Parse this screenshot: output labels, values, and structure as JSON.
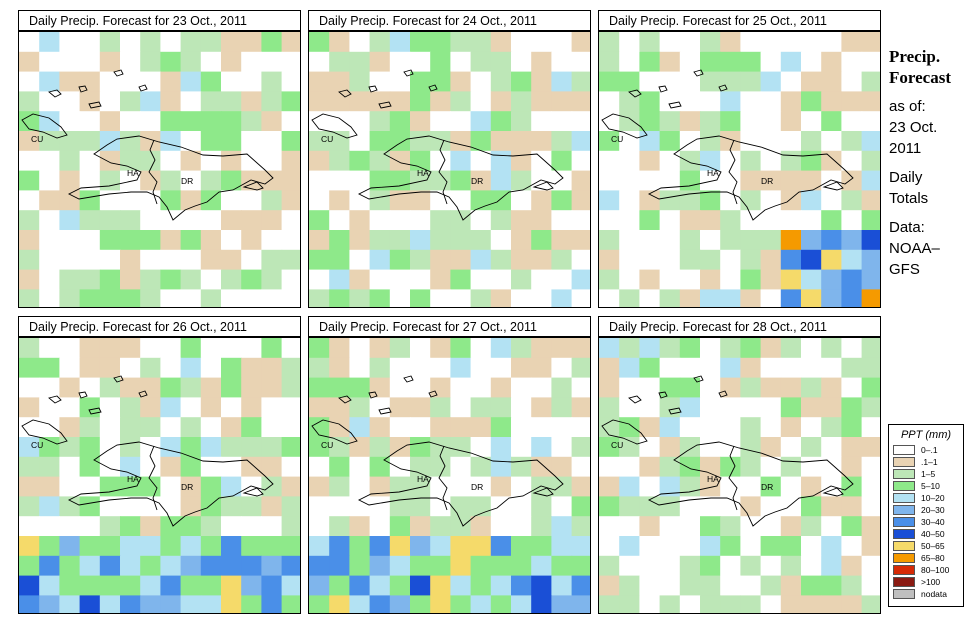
{
  "panels": [
    {
      "title": "Daily Precip. Forecast for  23 Oct., 2011",
      "seed": 11,
      "scenario": "calm"
    },
    {
      "title": "Daily Precip. Forecast for  24 Oct., 2011",
      "seed": 23,
      "scenario": "calm"
    },
    {
      "title": "Daily Precip. Forecast for  25 Oct., 2011",
      "seed": 37,
      "scenario": "storm_se"
    },
    {
      "title": "Daily Precip. Forecast for  26 Oct., 2011",
      "seed": 51,
      "scenario": "storm_s"
    },
    {
      "title": "Daily Precip. Forecast for  27 Oct., 2011",
      "seed": 67,
      "scenario": "storm_s"
    },
    {
      "title": "Daily Precip. Forecast for  28 Oct., 2011",
      "seed": 83,
      "scenario": "calm"
    }
  ],
  "map_labels": {
    "cuba": "CU",
    "haiti": "HA",
    "dominican_republic": "DR"
  },
  "sidebar": {
    "title_line1": "Precip.",
    "title_line2": "Forecast",
    "asof": "as of:",
    "date_line1": "23 Oct.",
    "date_line2": "2011",
    "daily_line1": "Daily",
    "daily_line2": "Totals",
    "data_line1": "Data:",
    "data_line2": "NOAA–",
    "data_line3": "GFS"
  },
  "legend": {
    "title": "PPT (mm)",
    "entries": [
      {
        "label": "0–.1",
        "color": "#ffffff"
      },
      {
        "label": ".1–1",
        "color": "#e9d3b3"
      },
      {
        "label": "1–5",
        "color": "#bde7b7"
      },
      {
        "label": "5–10",
        "color": "#8ee98a"
      },
      {
        "label": "10–20",
        "color": "#b3e2f3"
      },
      {
        "label": "20–30",
        "color": "#7fb5ec"
      },
      {
        "label": "30–40",
        "color": "#4a8fe8"
      },
      {
        "label": "40–50",
        "color": "#1a4fd6"
      },
      {
        "label": "50–65",
        "color": "#f5da6a"
      },
      {
        "label": "65–80",
        "color": "#f59a00"
      },
      {
        "label": "80–100",
        "color": "#d62a06"
      },
      {
        "label": ">100",
        "color": "#8a1a12"
      },
      {
        "label": "nodata",
        "color": "#bfbfbf"
      }
    ]
  }
}
